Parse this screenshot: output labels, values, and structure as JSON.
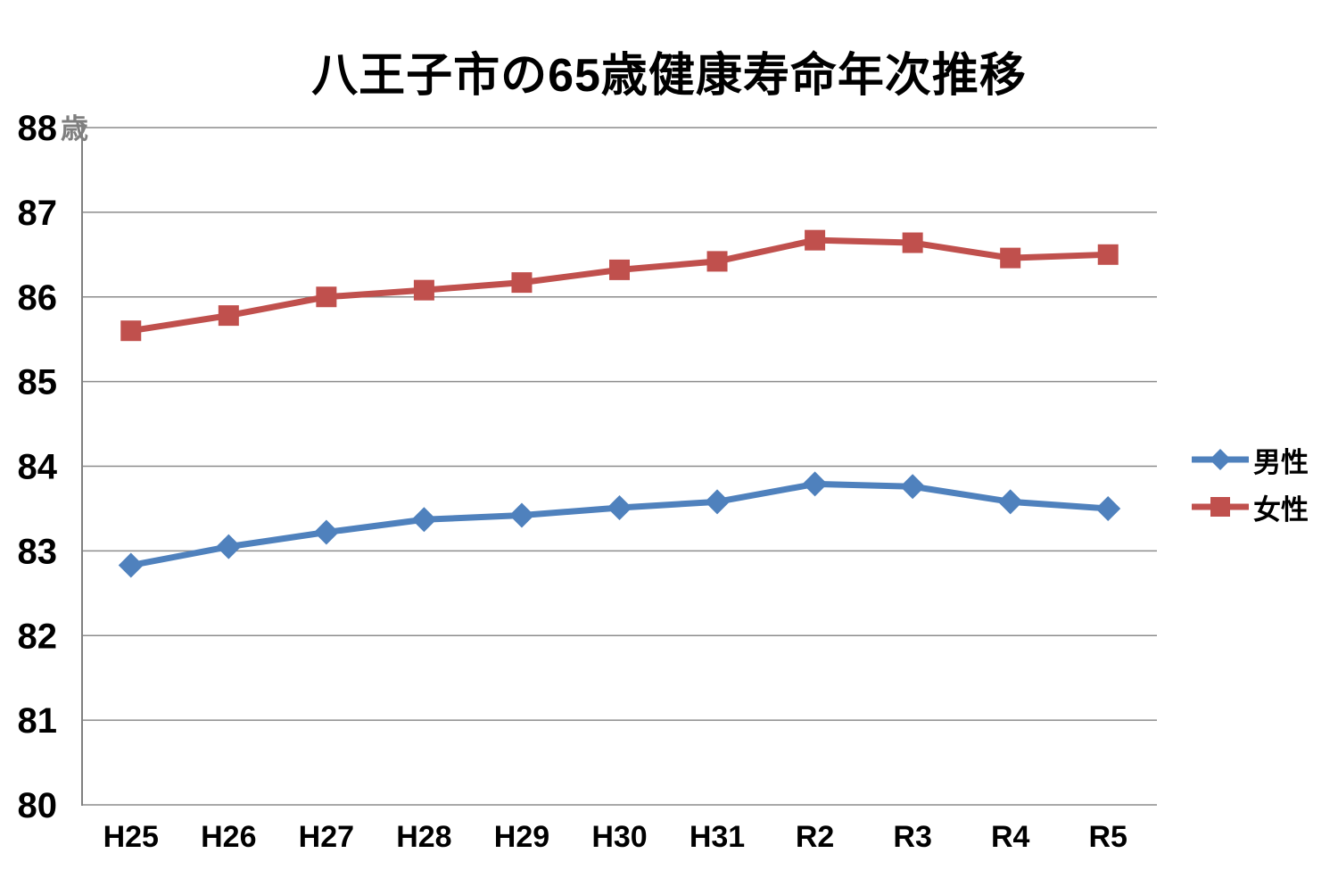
{
  "chart_data": {
    "type": "line",
    "title": "八王子市の65歳健康寿命年次推移",
    "y_unit": "歳",
    "xlabel": "",
    "ylabel": "",
    "categories": [
      "H25",
      "H26",
      "H27",
      "H28",
      "H29",
      "H30",
      "H31",
      "R2",
      "R3",
      "R4",
      "R5"
    ],
    "series": [
      {
        "key": "male",
        "name": "男性",
        "color": "#4F81BD",
        "marker": "diamond",
        "values": [
          82.83,
          83.05,
          83.22,
          83.37,
          83.42,
          83.51,
          83.58,
          83.79,
          83.76,
          83.58,
          83.5
        ]
      },
      {
        "key": "female",
        "name": "女性",
        "color": "#C0504D",
        "marker": "square",
        "values": [
          85.6,
          85.78,
          86.0,
          86.08,
          86.17,
          86.32,
          86.42,
          86.67,
          86.64,
          86.46,
          86.5
        ]
      }
    ],
    "ylim": [
      80,
      88
    ],
    "ytick_step": 1,
    "grid": true,
    "legend_position": "right",
    "colors": {
      "gridline": "#8c8c8c",
      "axis": "#808080",
      "tick_label": "#000000",
      "unit_label": "#7f7f7f",
      "background": "#ffffff"
    }
  }
}
